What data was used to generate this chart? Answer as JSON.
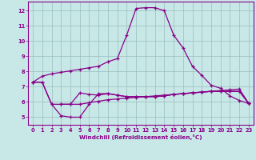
{
  "bg_color": "#c8e8e8",
  "line_color": "#880088",
  "grid_color": "#9bbcbc",
  "xlabel": "Windchill (Refroidissement éolien,°C)",
  "xlabel_color": "#880088",
  "tick_color": "#880088",
  "xlim": [
    -0.5,
    23.5
  ],
  "ylim": [
    4.5,
    12.6
  ],
  "yticks": [
    5,
    6,
    7,
    8,
    9,
    10,
    11,
    12
  ],
  "xticks": [
    0,
    1,
    2,
    3,
    4,
    5,
    6,
    7,
    8,
    9,
    10,
    11,
    12,
    13,
    14,
    15,
    16,
    17,
    18,
    19,
    20,
    21,
    22,
    23
  ],
  "line1_x": [
    0,
    1,
    2,
    3,
    4,
    5,
    6,
    7,
    8,
    9,
    10,
    11,
    12,
    13,
    14,
    15,
    16,
    17,
    18,
    19,
    20,
    21,
    22,
    23
  ],
  "line1_y": [
    7.3,
    7.7,
    7.85,
    7.95,
    8.05,
    8.15,
    8.25,
    8.35,
    8.65,
    8.85,
    10.4,
    12.15,
    12.2,
    12.2,
    12.0,
    10.4,
    9.55,
    8.35,
    7.75,
    7.1,
    6.9,
    6.4,
    6.1,
    5.9
  ],
  "line2_x": [
    3,
    4,
    5,
    6,
    7,
    8,
    9,
    10,
    11,
    12,
    13,
    14,
    15,
    16,
    17,
    18,
    19,
    20,
    21,
    22,
    23
  ],
  "line2_y": [
    5.85,
    5.85,
    5.85,
    5.95,
    6.05,
    6.15,
    6.2,
    6.25,
    6.3,
    6.35,
    6.4,
    6.45,
    6.5,
    6.55,
    6.6,
    6.65,
    6.7,
    6.75,
    6.8,
    6.85,
    5.9
  ],
  "line3_x": [
    0,
    1,
    2,
    3,
    4,
    5,
    6,
    7,
    8,
    9,
    10,
    11,
    12,
    13,
    14,
    15,
    16,
    17,
    18,
    19,
    20,
    21,
    22,
    23
  ],
  "line3_y": [
    7.3,
    7.3,
    5.85,
    5.85,
    5.85,
    6.6,
    6.5,
    6.45,
    6.55,
    6.45,
    6.35,
    6.35,
    6.35,
    6.35,
    6.4,
    6.5,
    6.55,
    6.6,
    6.65,
    6.7,
    6.7,
    6.7,
    6.7,
    5.9
  ],
  "line4_x": [
    0,
    1,
    2,
    3,
    4,
    5,
    6,
    7,
    8,
    9,
    10,
    11,
    12,
    13,
    14,
    15,
    16,
    17,
    18,
    19,
    20,
    21,
    22,
    23
  ],
  "line4_y": [
    7.3,
    7.3,
    5.85,
    5.1,
    5.0,
    5.0,
    5.85,
    6.55,
    6.55,
    6.45,
    6.35,
    6.35,
    6.35,
    6.35,
    6.4,
    6.5,
    6.55,
    6.6,
    6.65,
    6.7,
    6.7,
    6.7,
    6.7,
    5.9
  ]
}
